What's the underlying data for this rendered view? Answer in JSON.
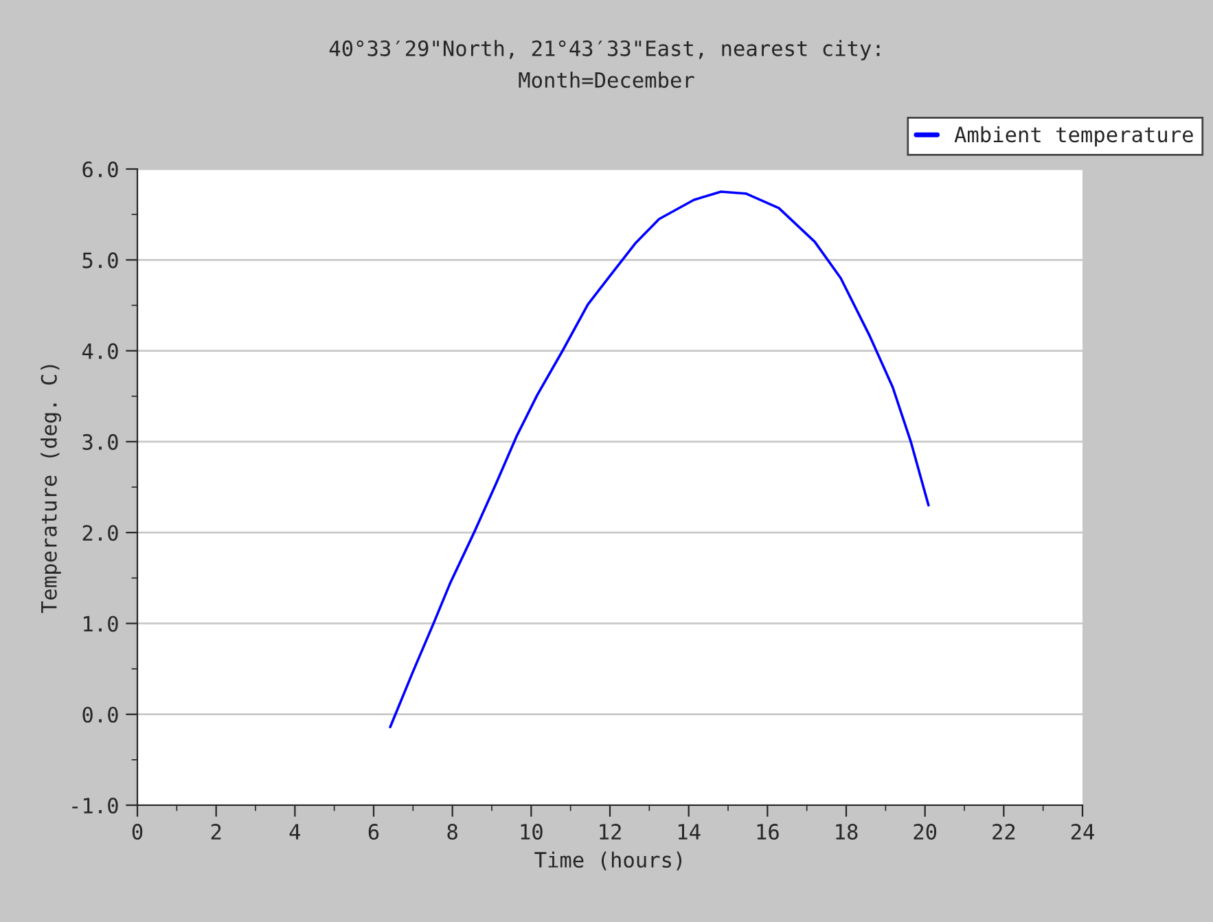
{
  "chart_data": {
    "type": "line",
    "title": "40°33′29\"North, 21°43′33\"East, nearest city:\nMonth=December",
    "xlabel": "Time (hours)",
    "ylabel": "Temperature (deg. C)",
    "series": [
      {
        "name": "Ambient temperature",
        "color": "#0000ff",
        "x": [
          6.42,
          6.98,
          7.53,
          7.95,
          8.55,
          9.1,
          9.63,
          10.15,
          10.81,
          11.44,
          12.03,
          12.66,
          13.25,
          14.13,
          14.82,
          15.45,
          16.29,
          17.2,
          17.86,
          18.6,
          19.18,
          19.64,
          20.09
        ],
        "values": [
          -0.14,
          0.45,
          1.01,
          1.45,
          2.0,
          2.53,
          3.06,
          3.51,
          4.01,
          4.51,
          4.84,
          5.19,
          5.45,
          5.66,
          5.75,
          5.73,
          5.57,
          5.2,
          4.8,
          4.16,
          3.6,
          3.0,
          2.3
        ]
      }
    ],
    "xlim": [
      0,
      24
    ],
    "xticks": [
      0,
      2,
      4,
      6,
      8,
      10,
      12,
      14,
      16,
      18,
      20,
      22,
      24
    ],
    "ylim": [
      -1.0,
      6.0
    ],
    "yticks": [
      {
        "value": -1,
        "label": "-1.0"
      },
      {
        "value": 0,
        "label": "0.0"
      },
      {
        "value": 1,
        "label": "1.0"
      },
      {
        "value": 2,
        "label": "2.0"
      },
      {
        "value": 3,
        "label": "3.0"
      },
      {
        "value": 4,
        "label": "4.0"
      },
      {
        "value": 5,
        "label": "5.0"
      },
      {
        "value": 6,
        "label": "6.0"
      }
    ],
    "grid": "y",
    "legend": "top right",
    "line_style": "solid",
    "marker": "none"
  }
}
